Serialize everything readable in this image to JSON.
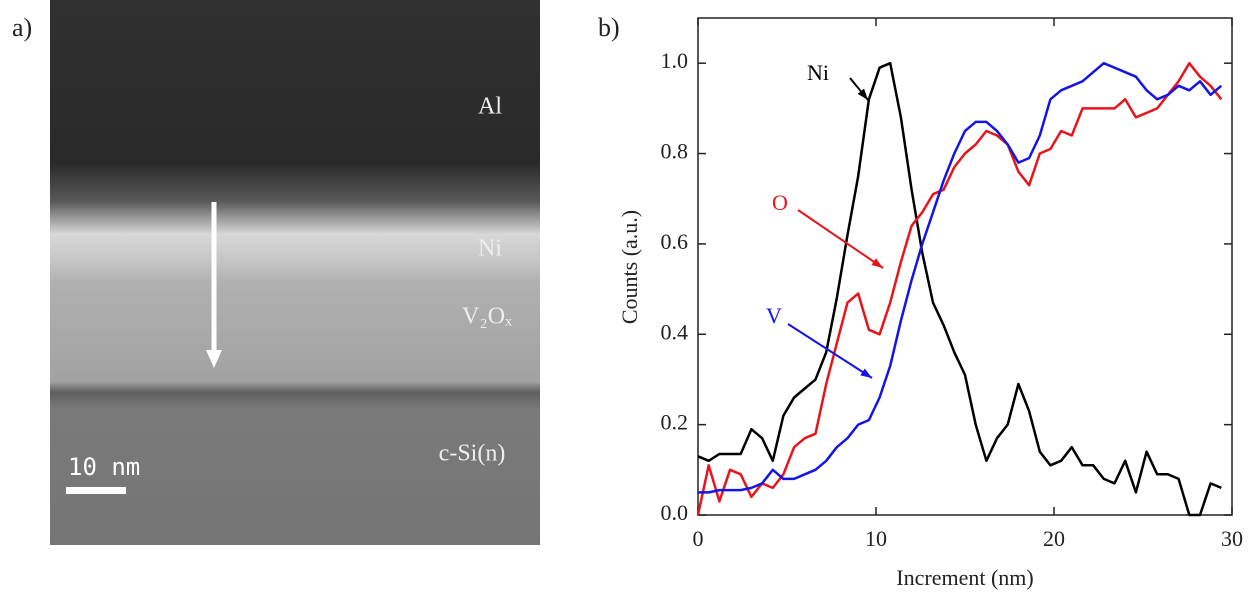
{
  "panel_a": {
    "panel_label": "a)",
    "layers": [
      "Al",
      "Ni",
      "V₂Oₓ",
      "c-Si(n)"
    ],
    "scale_bar": "10 nm"
  },
  "chart_data": {
    "type": "line",
    "panel_label": "b)",
    "x_label": "Increment (nm)",
    "y_label": "Counts (a.u.)",
    "x": [
      0,
      0.6,
      1.2,
      1.8,
      2.4,
      3.0,
      3.6,
      4.2,
      4.8,
      5.4,
      6.0,
      6.6,
      7.2,
      7.8,
      8.4,
      9.0,
      9.6,
      10.2,
      10.8,
      11.4,
      12.0,
      12.6,
      13.2,
      13.8,
      14.4,
      15.0,
      15.6,
      16.2,
      16.8,
      17.4,
      18.0,
      18.6,
      19.2,
      19.8,
      20.4,
      21.0,
      21.6,
      22.2,
      22.8,
      23.4,
      24.0,
      24.6,
      25.2,
      25.8,
      26.4,
      27.0,
      27.6,
      28.2,
      28.8,
      29.4
    ],
    "series": [
      {
        "name": "Ni",
        "color": "#000000",
        "values": [
          0.13,
          0.12,
          0.135,
          0.135,
          0.135,
          0.19,
          0.17,
          0.12,
          0.22,
          0.26,
          0.28,
          0.3,
          0.36,
          0.48,
          0.62,
          0.75,
          0.92,
          0.99,
          1.0,
          0.88,
          0.72,
          0.58,
          0.47,
          0.42,
          0.36,
          0.31,
          0.2,
          0.12,
          0.17,
          0.2,
          0.29,
          0.23,
          0.14,
          0.11,
          0.12,
          0.15,
          0.11,
          0.11,
          0.08,
          0.07,
          0.12,
          0.05,
          0.14,
          0.09,
          0.09,
          0.08,
          0.0,
          0.0,
          0.07,
          0.06
        ]
      },
      {
        "name": "O",
        "color": "#e8141c",
        "values": [
          0.0,
          0.11,
          0.03,
          0.1,
          0.09,
          0.04,
          0.07,
          0.06,
          0.09,
          0.15,
          0.17,
          0.18,
          0.29,
          0.38,
          0.47,
          0.49,
          0.41,
          0.4,
          0.47,
          0.56,
          0.64,
          0.67,
          0.71,
          0.72,
          0.77,
          0.8,
          0.82,
          0.85,
          0.84,
          0.82,
          0.76,
          0.73,
          0.8,
          0.81,
          0.85,
          0.84,
          0.9,
          0.9,
          0.9,
          0.9,
          0.92,
          0.88,
          0.89,
          0.9,
          0.93,
          0.96,
          1.0,
          0.97,
          0.95,
          0.92
        ]
      },
      {
        "name": "V",
        "color": "#1414e8",
        "values": [
          0.05,
          0.05,
          0.055,
          0.055,
          0.055,
          0.06,
          0.07,
          0.1,
          0.08,
          0.08,
          0.09,
          0.1,
          0.12,
          0.15,
          0.17,
          0.2,
          0.21,
          0.26,
          0.33,
          0.43,
          0.52,
          0.6,
          0.67,
          0.74,
          0.8,
          0.85,
          0.87,
          0.87,
          0.85,
          0.82,
          0.78,
          0.79,
          0.84,
          0.92,
          0.94,
          0.95,
          0.96,
          0.98,
          1.0,
          0.99,
          0.98,
          0.97,
          0.94,
          0.92,
          0.93,
          0.95,
          0.94,
          0.96,
          0.93,
          0.95
        ]
      }
    ],
    "xlim": [
      0,
      30
    ],
    "xticks": [
      0,
      10,
      20,
      30
    ],
    "ylim": [
      0,
      1.1
    ],
    "yticks": [
      {
        "value": 0,
        "label": "0.0"
      },
      0.2,
      0.4,
      0.6,
      0.8,
      {
        "value": 1,
        "label": "1.0"
      }
    ]
  }
}
